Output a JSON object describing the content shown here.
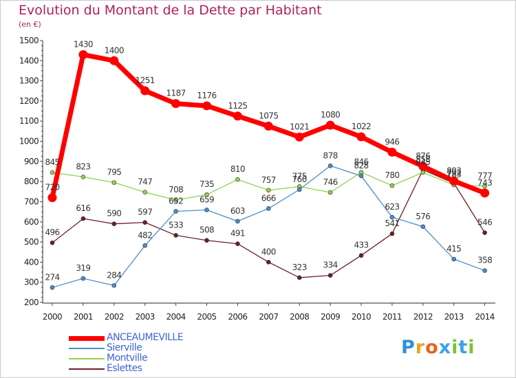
{
  "title": "Evolution du Montant de la Dette par Habitant",
  "subtitle": "(en €)",
  "logo": {
    "text": "Proxiti",
    "colors": [
      "#2f8fe0",
      "#f0a020",
      "#e8641c",
      "#3aa3e6",
      "#7cc431"
    ]
  },
  "chart_data": {
    "type": "line",
    "title": "Evolution du Montant de la Dette par Habitant",
    "ylabel": "(en €)",
    "xlabel": "",
    "x": [
      "2000",
      "2001",
      "2002",
      "2003",
      "2004",
      "2005",
      "2006",
      "2007",
      "2008",
      "2009",
      "2010",
      "2011",
      "2012",
      "2013",
      "2014"
    ],
    "ylim": [
      200,
      1500
    ],
    "yticks": [
      200,
      300,
      400,
      500,
      600,
      700,
      800,
      900,
      1000,
      1100,
      1200,
      1300,
      1400,
      1500
    ],
    "grid": false,
    "legend": "bottom-left",
    "series": [
      {
        "name": "ANCEAUMEVILLE",
        "color": "#ff0000",
        "values": [
          720,
          1430,
          1400,
          1251,
          1187,
          1176,
          1125,
          1075,
          1021,
          1080,
          1022,
          946,
          876,
          803,
          743
        ]
      },
      {
        "name": "Sierville",
        "color": "#4a8dc8",
        "values": [
          274,
          319,
          284,
          482,
          652,
          659,
          603,
          666,
          760,
          878,
          828,
          623,
          576,
          415,
          358
        ]
      },
      {
        "name": "Montville",
        "color": "#92d050",
        "values": [
          845,
          823,
          795,
          747,
          708,
          735,
          810,
          757,
          775,
          746,
          846,
          780,
          845,
          783,
          777
        ]
      },
      {
        "name": "Eslettes",
        "color": "#6b1f26",
        "values": [
          496,
          616,
          590,
          597,
          533,
          508,
          491,
          400,
          323,
          334,
          433,
          541,
          858,
          792,
          546
        ]
      }
    ]
  }
}
